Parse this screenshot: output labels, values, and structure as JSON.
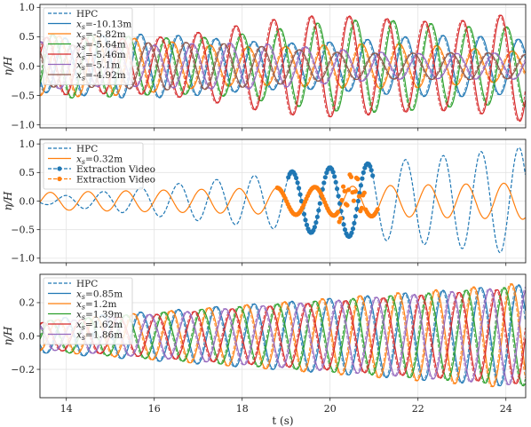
{
  "chart_data": [
    {
      "type": "line",
      "panel": "top",
      "ylabel": "η/H",
      "xlim": [
        13.4,
        24.45
      ],
      "ylim": [
        -1.05,
        1.05
      ],
      "yticks": [
        -1.0,
        -0.5,
        0.0,
        0.5,
        1.0
      ],
      "ytick_labels": [
        "−1.0",
        "−0.5",
        "0.0",
        "0.5",
        "1.0"
      ],
      "grid": true,
      "legend_position": "upper-left",
      "legend": [
        "HPC",
        "x_s=-10.13m",
        "x_s=-5.82m",
        "x_s=-5.64m",
        "x_s=-5.46m",
        "x_s=-5.1m",
        "x_s=-4.92m"
      ],
      "legend_labels": [
        "HPC",
        "xs=-10.13m",
        "xs=-5.82m",
        "xs=-5.64m",
        "xs=-5.46m",
        "xs=-5.1m",
        "xs=-4.92m"
      ],
      "wave_period_s": 0.86,
      "series": [
        {
          "name": "xs=-10.13m",
          "color": "#1f77b4",
          "amp_start": 0.48,
          "amp_end": 0.45,
          "phase": 0.0
        },
        {
          "name": "xs=-5.82m",
          "color": "#ff7f0e",
          "amp_start": 0.47,
          "amp_end": 0.28,
          "phase": 1.0
        },
        {
          "name": "xs=-5.64m",
          "color": "#2ca02c",
          "amp_start": 0.46,
          "amp_end": 0.8,
          "phase": 2.0
        },
        {
          "name": "xs=-5.46m",
          "color": "#d62728",
          "amp_start": 0.45,
          "amp_end": 0.98,
          "phase": 3.0
        },
        {
          "name": "xs=-5.1m",
          "color": "#9467bd",
          "amp_start": 0.44,
          "amp_end": 0.2,
          "phase": 4.0
        },
        {
          "name": "xs=-4.92m",
          "color": "#8c564b",
          "amp_start": 0.43,
          "amp_end": 0.18,
          "phase": 5.0
        }
      ]
    },
    {
      "type": "line",
      "panel": "middle",
      "ylabel": "η/H",
      "xlim": [
        13.4,
        24.45
      ],
      "ylim": [
        -1.08,
        1.08
      ],
      "yticks": [
        -1.0,
        -0.5,
        0.0,
        0.5,
        1.0
      ],
      "ytick_labels": [
        "−1.0",
        "−0.5",
        "0.0",
        "0.5",
        "1.0"
      ],
      "grid": true,
      "legend_position": "upper-left",
      "legend": [
        "HPC",
        "x_s=0.32m",
        "Extraction Video",
        "Extraction Video"
      ],
      "legend_labels": [
        "HPC",
        "xs=0.32m",
        "Extraction Video",
        "Extraction Video"
      ],
      "wave_period_s": 0.86,
      "series": [
        {
          "name": "HPC",
          "color": "#1f77b4",
          "style": "dashed",
          "amp_start": 0.05,
          "amp_end": 0.95,
          "phase": 0.0
        },
        {
          "name": "xs=0.32m",
          "color": "#ff7f0e",
          "amp_start": 0.15,
          "amp_end": 0.32,
          "phase": 2.5
        },
        {
          "name": "Extraction Video",
          "color": "#1f77b4",
          "marker": "dots",
          "x_range": [
            19.05,
            21.0
          ]
        },
        {
          "name": "Extraction Video",
          "color": "#ff7f0e",
          "marker": "dots",
          "x_range": [
            18.8,
            21.1
          ]
        }
      ]
    },
    {
      "type": "line",
      "panel": "bottom",
      "ylabel": "η/H",
      "xlabel": "t (s)",
      "xlim": [
        13.4,
        24.45
      ],
      "xticks": [
        14,
        16,
        18,
        20,
        22,
        24
      ],
      "ylim": [
        -0.37,
        0.37
      ],
      "yticks": [
        -0.2,
        0.0,
        0.2
      ],
      "ytick_labels": [
        "−0.2",
        "0.0",
        "0.2"
      ],
      "grid": true,
      "legend_position": "upper-left",
      "legend": [
        "HPC",
        "x_s=0.85m",
        "x_s=1.2m",
        "x_s=1.39m",
        "x_s=1.62m",
        "x_s=1.86m"
      ],
      "legend_labels": [
        "HPC",
        "xs=0.85m",
        "xs=1.2m",
        "xs=1.39m",
        "xs=1.62m",
        "xs=1.86m"
      ],
      "wave_period_s": 0.86,
      "series": [
        {
          "name": "xs=0.85m",
          "color": "#1f77b4",
          "amp_start": 0.1,
          "amp_end": 0.31,
          "phase": 0.0
        },
        {
          "name": "xs=1.2m",
          "color": "#ff7f0e",
          "amp_start": 0.09,
          "amp_end": 0.32,
          "phase": 1.2
        },
        {
          "name": "xs=1.39m",
          "color": "#2ca02c",
          "amp_start": 0.09,
          "amp_end": 0.3,
          "phase": 2.4
        },
        {
          "name": "xs=1.62m",
          "color": "#d62728",
          "amp_start": 0.08,
          "amp_end": 0.29,
          "phase": 3.6
        },
        {
          "name": "xs=1.86m",
          "color": "#9467bd",
          "amp_start": 0.08,
          "amp_end": 0.3,
          "phase": 4.8
        }
      ]
    }
  ]
}
